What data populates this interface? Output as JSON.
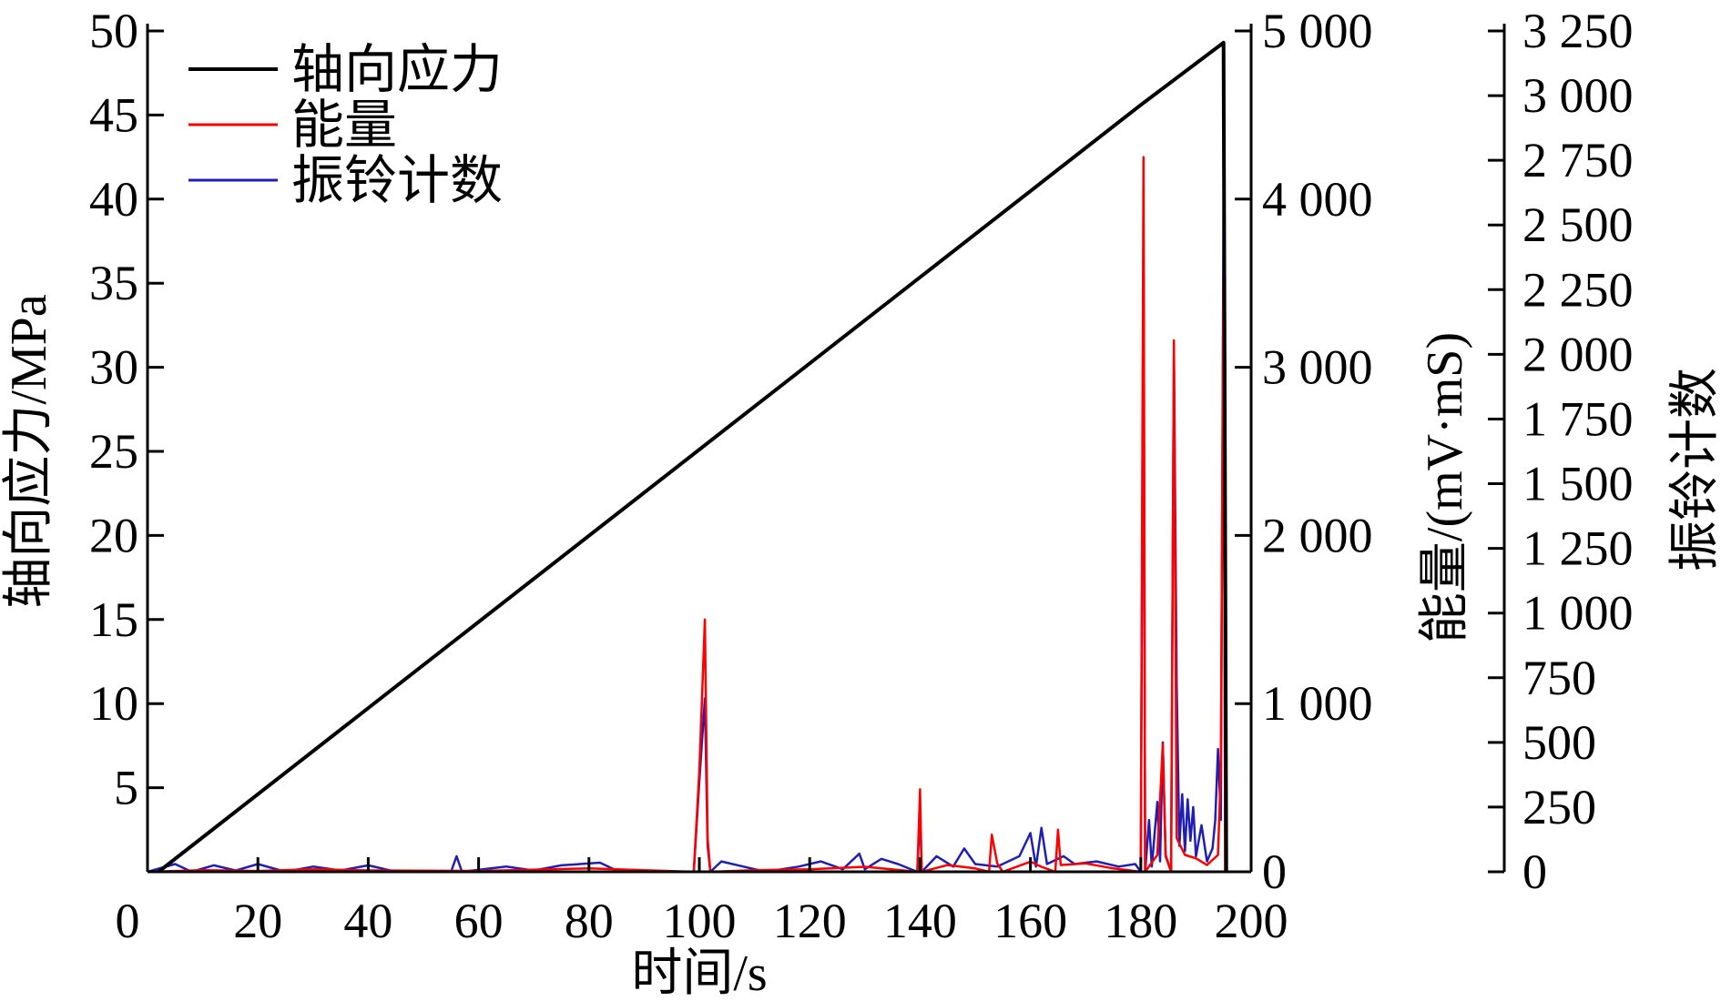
{
  "chart_data": {
    "type": "line",
    "xlabel": "时间/s",
    "xlim": [
      0,
      200
    ],
    "xticks": [
      "0",
      "20",
      "40",
      "60",
      "80",
      "100",
      "120",
      "140",
      "160",
      "180",
      "200"
    ],
    "grid": false,
    "legend_placement": "top-left",
    "axes": [
      {
        "id": "stress",
        "side": "left",
        "label": "轴向应力/MPa",
        "ylim": [
          0,
          50
        ],
        "ticks": [
          "5",
          "10",
          "15",
          "20",
          "25",
          "30",
          "35",
          "40",
          "45",
          "50"
        ],
        "tick_values": [
          5,
          10,
          15,
          20,
          25,
          30,
          35,
          40,
          45,
          50
        ]
      },
      {
        "id": "energy",
        "side": "right",
        "label": "能量/(mV·mS)",
        "ylim": [
          0,
          5000
        ],
        "ticks": [
          "0",
          "1 000",
          "2 000",
          "3 000",
          "4 000",
          "5 000"
        ],
        "tick_values": [
          0,
          1000,
          2000,
          3000,
          4000,
          5000
        ]
      },
      {
        "id": "count",
        "side": "right-outer",
        "label": "振铃计数",
        "ylim": [
          0,
          3250
        ],
        "ticks": [
          "0",
          "250",
          "500",
          "750",
          "1 000",
          "1 250",
          "1 500",
          "1 750",
          "2 000",
          "2 250",
          "2 500",
          "2 750",
          "3 000",
          "3 250"
        ],
        "tick_values": [
          0,
          250,
          500,
          750,
          1000,
          1250,
          1500,
          1750,
          2000,
          2250,
          2500,
          2750,
          3000,
          3250
        ]
      }
    ],
    "series": [
      {
        "name": "轴向应力",
        "axis": "stress",
        "color": "#000000",
        "points": [
          [
            2,
            0
          ],
          [
            180,
            45.6
          ],
          [
            195,
            49.3
          ],
          [
            195.5,
            0
          ]
        ]
      },
      {
        "name": "能量",
        "axis": "energy",
        "color": "#ff0000",
        "points": [
          [
            0,
            0
          ],
          [
            10,
            10
          ],
          [
            20,
            5
          ],
          [
            30,
            15
          ],
          [
            40,
            8
          ],
          [
            60,
            5
          ],
          [
            80,
            20
          ],
          [
            90,
            10
          ],
          [
            99,
            0
          ],
          [
            100,
            600
          ],
          [
            101,
            1500
          ],
          [
            101.5,
            200
          ],
          [
            102,
            0
          ],
          [
            110,
            10
          ],
          [
            120,
            15
          ],
          [
            130,
            30
          ],
          [
            139.5,
            0
          ],
          [
            140,
            490
          ],
          [
            140.3,
            0
          ],
          [
            145,
            40
          ],
          [
            150,
            20
          ],
          [
            152.5,
            0
          ],
          [
            153,
            220
          ],
          [
            154,
            50
          ],
          [
            155,
            0
          ],
          [
            160,
            60
          ],
          [
            162,
            30
          ],
          [
            164.5,
            0
          ],
          [
            165,
            250
          ],
          [
            165.5,
            40
          ],
          [
            170,
            50
          ],
          [
            175,
            20
          ],
          [
            180,
            0
          ],
          [
            180.5,
            4250
          ],
          [
            180.8,
            0
          ],
          [
            183,
            100
          ],
          [
            184,
            760
          ],
          [
            184.5,
            100
          ],
          [
            185.5,
            0
          ],
          [
            186,
            3160
          ],
          [
            186.5,
            200
          ],
          [
            188,
            100
          ],
          [
            190,
            80
          ],
          [
            192,
            40
          ],
          [
            194,
            100
          ],
          [
            194.5,
            600
          ],
          [
            195,
            3600
          ],
          [
            195.3,
            0
          ]
        ]
      },
      {
        "name": "振铃计数",
        "axis": "count",
        "color": "#1f1fb4",
        "points": [
          [
            0,
            0
          ],
          [
            5,
            30
          ],
          [
            8,
            0
          ],
          [
            12,
            25
          ],
          [
            16,
            5
          ],
          [
            20,
            30
          ],
          [
            25,
            0
          ],
          [
            30,
            20
          ],
          [
            35,
            5
          ],
          [
            40,
            25
          ],
          [
            45,
            0
          ],
          [
            55,
            0
          ],
          [
            56,
            60
          ],
          [
            57,
            0
          ],
          [
            65,
            20
          ],
          [
            70,
            5
          ],
          [
            75,
            25
          ],
          [
            82,
            35
          ],
          [
            85,
            5
          ],
          [
            95,
            0
          ],
          [
            99,
            0
          ],
          [
            100,
            350
          ],
          [
            101,
            670
          ],
          [
            101.5,
            100
          ],
          [
            102,
            0
          ],
          [
            104,
            40
          ],
          [
            108,
            20
          ],
          [
            112,
            0
          ],
          [
            118,
            20
          ],
          [
            122,
            40
          ],
          [
            126,
            10
          ],
          [
            129,
            70
          ],
          [
            130,
            10
          ],
          [
            133,
            50
          ],
          [
            136,
            30
          ],
          [
            139.5,
            0
          ],
          [
            140,
            240
          ],
          [
            140.3,
            0
          ],
          [
            143,
            60
          ],
          [
            146,
            20
          ],
          [
            148,
            90
          ],
          [
            150,
            30
          ],
          [
            154,
            20
          ],
          [
            158,
            60
          ],
          [
            160,
            150
          ],
          [
            161,
            20
          ],
          [
            162,
            170
          ],
          [
            163,
            30
          ],
          [
            166,
            60
          ],
          [
            168,
            30
          ],
          [
            172,
            40
          ],
          [
            176,
            20
          ],
          [
            179,
            30
          ],
          [
            180,
            0
          ],
          [
            180.5,
            2440
          ],
          [
            180.8,
            0
          ],
          [
            181.5,
            200
          ],
          [
            182,
            20
          ],
          [
            183,
            270
          ],
          [
            183.5,
            40
          ],
          [
            184,
            500
          ],
          [
            184.5,
            60
          ],
          [
            185.5,
            0
          ],
          [
            186,
            2015
          ],
          [
            186.5,
            730
          ],
          [
            187,
            100
          ],
          [
            187.5,
            300
          ],
          [
            188,
            80
          ],
          [
            188.5,
            280
          ],
          [
            189,
            120
          ],
          [
            189.5,
            250
          ],
          [
            190,
            60
          ],
          [
            191,
            180
          ],
          [
            192,
            40
          ],
          [
            193,
            90
          ],
          [
            193.5,
            200
          ],
          [
            194,
            475
          ],
          [
            194.5,
            200
          ],
          [
            195,
            2600
          ],
          [
            195.3,
            0
          ]
        ]
      }
    ]
  }
}
